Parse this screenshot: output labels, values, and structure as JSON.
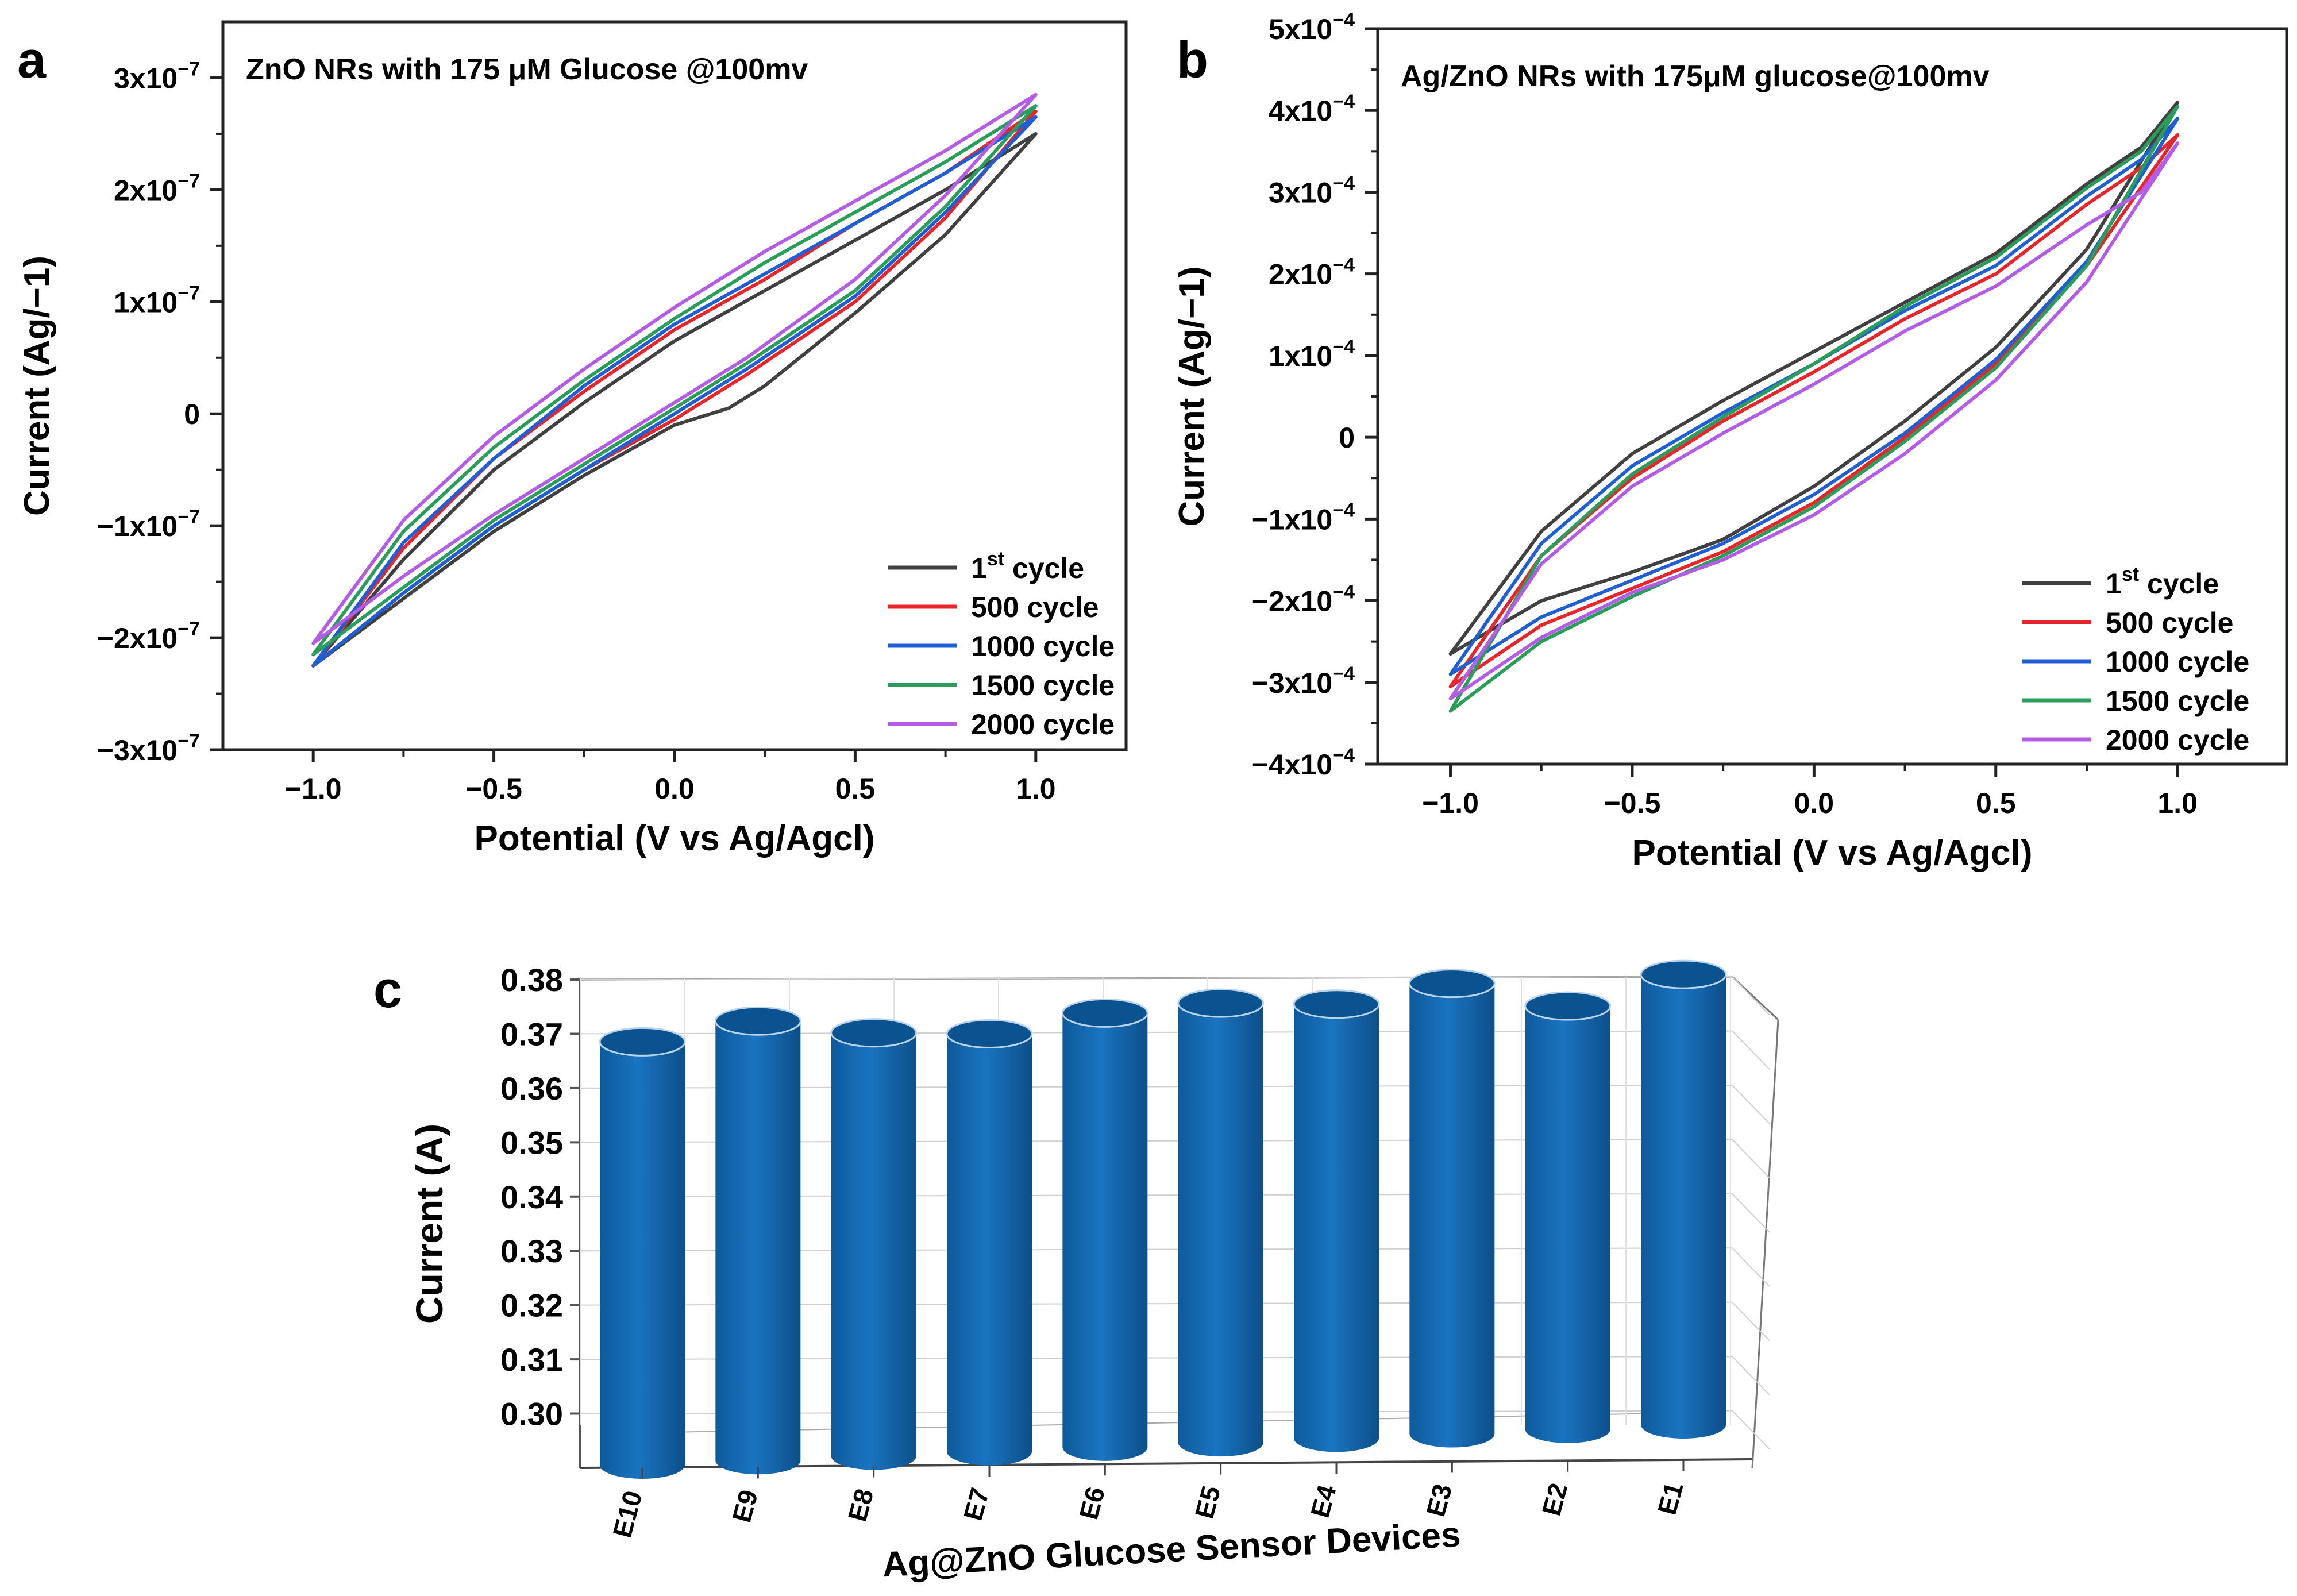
{
  "chart_data": [
    {
      "panel": "a",
      "type": "line",
      "title": "ZnO NRs with 175 μM Glucose @100mv",
      "xlabel": "Potential (V vs Ag/Agcl)",
      "ylabel": "Current (Ag/−1)",
      "xlim": [
        -1.25,
        1.25
      ],
      "ylim": [
        -3e-07,
        3.5e-07
      ],
      "xticks": [
        -1.0,
        -0.5,
        0.0,
        0.5,
        1.0
      ],
      "xtick_labels": [
        "−1.0",
        "−0.5",
        "0.0",
        "0.5",
        "1.0"
      ],
      "yticks": [
        3e-07,
        2e-07,
        1e-07,
        0,
        -1e-07,
        -2e-07,
        -3e-07
      ],
      "ytick_labels": [
        {
          "mant": "3x10",
          "exp": "−7"
        },
        {
          "mant": "2x10",
          "exp": "−7"
        },
        {
          "mant": "1x10",
          "exp": "−7"
        },
        {
          "mant": "0",
          "exp": ""
        },
        {
          "mant": "−1x10",
          "exp": "−7"
        },
        {
          "mant": "−2x10",
          "exp": "−7"
        },
        {
          "mant": "−3x10",
          "exp": "−7"
        }
      ],
      "legend_position": "bottom-right",
      "series": [
        {
          "name": "1st cycle",
          "label_main": "1",
          "label_sup": "st",
          "label_rest": " cycle",
          "color": "#404040",
          "lower": [
            [
              -1.0,
              -2.25e-07
            ],
            [
              -0.75,
              -1.65e-07
            ],
            [
              -0.5,
              -1.05e-07
            ],
            [
              -0.25,
              -5.5e-08
            ],
            [
              0.0,
              -1e-08
            ],
            [
              0.15,
              5e-09
            ],
            [
              0.25,
              2.5e-08
            ],
            [
              0.5,
              9e-08
            ],
            [
              0.75,
              1.6e-07
            ],
            [
              1.0,
              2.5e-07
            ]
          ],
          "upper": [
            [
              1.0,
              2.5e-07
            ],
            [
              0.75,
              2e-07
            ],
            [
              0.5,
              1.55e-07
            ],
            [
              0.25,
              1.1e-07
            ],
            [
              0.0,
              6.5e-08
            ],
            [
              -0.25,
              1e-08
            ],
            [
              -0.5,
              -5e-08
            ],
            [
              -0.75,
              -1.3e-07
            ],
            [
              -1.0,
              -2.25e-07
            ]
          ]
        },
        {
          "name": "500 cycle",
          "label_main": "500 cycle",
          "label_sup": "",
          "label_rest": "",
          "color": "#e8252b",
          "lower": [
            [
              -1.0,
              -2.25e-07
            ],
            [
              -0.75,
              -1.6e-07
            ],
            [
              -0.5,
              -1e-07
            ],
            [
              -0.25,
              -5e-08
            ],
            [
              0.0,
              -5e-09
            ],
            [
              0.2,
              3.5e-08
            ],
            [
              0.5,
              1e-07
            ],
            [
              0.75,
              1.75e-07
            ],
            [
              1.0,
              2.7e-07
            ]
          ],
          "upper": [
            [
              1.0,
              2.7e-07
            ],
            [
              0.75,
              2.15e-07
            ],
            [
              0.5,
              1.7e-07
            ],
            [
              0.25,
              1.2e-07
            ],
            [
              0.0,
              7.5e-08
            ],
            [
              -0.25,
              2e-08
            ],
            [
              -0.5,
              -4e-08
            ],
            [
              -0.75,
              -1.2e-07
            ],
            [
              -1.0,
              -2.25e-07
            ]
          ]
        },
        {
          "name": "1000 cycle",
          "label_main": "1000 cycle",
          "label_sup": "",
          "label_rest": "",
          "color": "#1f5fd6",
          "lower": [
            [
              -1.0,
              -2.25e-07
            ],
            [
              -0.75,
              -1.6e-07
            ],
            [
              -0.5,
              -1e-07
            ],
            [
              -0.25,
              -5e-08
            ],
            [
              0.0,
              0.0
            ],
            [
              0.2,
              4e-08
            ],
            [
              0.5,
              1.05e-07
            ],
            [
              0.75,
              1.8e-07
            ],
            [
              1.0,
              2.65e-07
            ]
          ],
          "upper": [
            [
              1.0,
              2.65e-07
            ],
            [
              0.75,
              2.15e-07
            ],
            [
              0.5,
              1.7e-07
            ],
            [
              0.25,
              1.25e-07
            ],
            [
              0.0,
              8e-08
            ],
            [
              -0.25,
              2.5e-08
            ],
            [
              -0.5,
              -4e-08
            ],
            [
              -0.75,
              -1.15e-07
            ],
            [
              -1.0,
              -2.25e-07
            ]
          ]
        },
        {
          "name": "1500 cycle",
          "label_main": "1500 cycle",
          "label_sup": "",
          "label_rest": "",
          "color": "#2a9d5a",
          "lower": [
            [
              -1.0,
              -2.15e-07
            ],
            [
              -0.75,
              -1.55e-07
            ],
            [
              -0.5,
              -9.5e-08
            ],
            [
              -0.25,
              -4.5e-08
            ],
            [
              0.0,
              5e-09
            ],
            [
              0.2,
              4.5e-08
            ],
            [
              0.5,
              1.1e-07
            ],
            [
              0.75,
              1.85e-07
            ],
            [
              1.0,
              2.75e-07
            ]
          ],
          "upper": [
            [
              1.0,
              2.75e-07
            ],
            [
              0.75,
              2.25e-07
            ],
            [
              0.5,
              1.8e-07
            ],
            [
              0.25,
              1.35e-07
            ],
            [
              0.0,
              8.5e-08
            ],
            [
              -0.25,
              3e-08
            ],
            [
              -0.5,
              -3e-08
            ],
            [
              -0.75,
              -1.05e-07
            ],
            [
              -1.0,
              -2.15e-07
            ]
          ]
        },
        {
          "name": "2000 cycle",
          "label_main": "2000 cycle",
          "label_sup": "",
          "label_rest": "",
          "color": "#b35ce6",
          "lower": [
            [
              -1.0,
              -2.05e-07
            ],
            [
              -0.75,
              -1.45e-07
            ],
            [
              -0.5,
              -9e-08
            ],
            [
              -0.25,
              -4e-08
            ],
            [
              0.0,
              1e-08
            ],
            [
              0.2,
              5e-08
            ],
            [
              0.5,
              1.2e-07
            ],
            [
              0.75,
              1.95e-07
            ],
            [
              1.0,
              2.85e-07
            ]
          ],
          "upper": [
            [
              1.0,
              2.85e-07
            ],
            [
              0.75,
              2.35e-07
            ],
            [
              0.5,
              1.9e-07
            ],
            [
              0.25,
              1.45e-07
            ],
            [
              0.0,
              9.5e-08
            ],
            [
              -0.25,
              4e-08
            ],
            [
              -0.5,
              -2e-08
            ],
            [
              -0.75,
              -9.5e-08
            ],
            [
              -1.0,
              -2.05e-07
            ]
          ]
        }
      ]
    },
    {
      "panel": "b",
      "type": "line",
      "title": "Ag/ZnO NRs with 175μM glucose@100mv",
      "xlabel": "Potential (V vs Ag/Agcl)",
      "ylabel": "Current (Ag/−1)",
      "xlim": [
        -1.2,
        1.3
      ],
      "ylim": [
        -0.0004,
        0.0005
      ],
      "xticks": [
        -1.0,
        -0.5,
        0.0,
        0.5,
        1.0
      ],
      "xtick_labels": [
        "−1.0",
        "−0.5",
        "0.0",
        "0.5",
        "1.0"
      ],
      "yticks": [
        0.0005,
        0.0004,
        0.0003,
        0.0002,
        0.0001,
        0,
        -0.0001,
        -0.0002,
        -0.0003,
        -0.0004
      ],
      "ytick_labels": [
        {
          "mant": "5x10",
          "exp": "−4"
        },
        {
          "mant": "4x10",
          "exp": "−4"
        },
        {
          "mant": "3x10",
          "exp": "−4"
        },
        {
          "mant": "2x10",
          "exp": "−4"
        },
        {
          "mant": "1x10",
          "exp": "−4"
        },
        {
          "mant": "0",
          "exp": ""
        },
        {
          "mant": "−1x10",
          "exp": "−4"
        },
        {
          "mant": "−2x10",
          "exp": "−4"
        },
        {
          "mant": "−3x10",
          "exp": "−4"
        },
        {
          "mant": "−4x10",
          "exp": "−4"
        }
      ],
      "legend_position": "bottom-right",
      "series": [
        {
          "name": "1st cycle",
          "label_main": "1",
          "label_sup": "st",
          "label_rest": " cycle",
          "color": "#404040",
          "lower": [
            [
              -1.0,
              -0.000265
            ],
            [
              -0.75,
              -0.0002
            ],
            [
              -0.5,
              -0.000165
            ],
            [
              -0.25,
              -0.000125
            ],
            [
              0.0,
              -6e-05
            ],
            [
              0.25,
              2e-05
            ],
            [
              0.5,
              0.00011
            ],
            [
              0.75,
              0.00023
            ],
            [
              1.0,
              0.00041
            ]
          ],
          "upper": [
            [
              1.0,
              0.00041
            ],
            [
              0.9,
              0.000355
            ],
            [
              0.75,
              0.00031
            ],
            [
              0.5,
              0.000225
            ],
            [
              0.25,
              0.000165
            ],
            [
              0.0,
              0.000105
            ],
            [
              -0.25,
              4.5e-05
            ],
            [
              -0.5,
              -2e-05
            ],
            [
              -0.75,
              -0.000115
            ],
            [
              -1.0,
              -0.000265
            ]
          ]
        },
        {
          "name": "500 cycle",
          "label_main": "500 cycle",
          "label_sup": "",
          "label_rest": "",
          "color": "#e8252b",
          "lower": [
            [
              -1.0,
              -0.000305
            ],
            [
              -0.75,
              -0.00023
            ],
            [
              -0.5,
              -0.000185
            ],
            [
              -0.25,
              -0.00014
            ],
            [
              0.0,
              -8e-05
            ],
            [
              0.25,
              0.0
            ],
            [
              0.5,
              9e-05
            ],
            [
              0.75,
              0.00021
            ],
            [
              1.0,
              0.00037
            ]
          ],
          "upper": [
            [
              1.0,
              0.00037
            ],
            [
              0.9,
              0.00033
            ],
            [
              0.75,
              0.000285
            ],
            [
              0.5,
              0.0002
            ],
            [
              0.25,
              0.000145
            ],
            [
              0.0,
              8e-05
            ],
            [
              -0.25,
              2e-05
            ],
            [
              -0.5,
              -5e-05
            ],
            [
              -0.75,
              -0.000145
            ],
            [
              -1.0,
              -0.000305
            ]
          ]
        },
        {
          "name": "1000 cycle",
          "label_main": "1000 cycle",
          "label_sup": "",
          "label_rest": "",
          "color": "#1f5fd6",
          "lower": [
            [
              -1.0,
              -0.00029
            ],
            [
              -0.75,
              -0.00022
            ],
            [
              -0.5,
              -0.000175
            ],
            [
              -0.25,
              -0.00013
            ],
            [
              0.0,
              -7e-05
            ],
            [
              0.25,
              5e-06
            ],
            [
              0.5,
              9.5e-05
            ],
            [
              0.75,
              0.000215
            ],
            [
              1.0,
              0.00039
            ]
          ],
          "upper": [
            [
              1.0,
              0.00039
            ],
            [
              0.9,
              0.00034
            ],
            [
              0.75,
              0.000295
            ],
            [
              0.5,
              0.00021
            ],
            [
              0.25,
              0.000155
            ],
            [
              0.0,
              9e-05
            ],
            [
              -0.25,
              3e-05
            ],
            [
              -0.5,
              -3.5e-05
            ],
            [
              -0.75,
              -0.00013
            ],
            [
              -1.0,
              -0.00029
            ]
          ]
        },
        {
          "name": "1500 cycle",
          "label_main": "1500 cycle",
          "label_sup": "",
          "label_rest": "",
          "color": "#2a9d5a",
          "lower": [
            [
              -1.0,
              -0.000335
            ],
            [
              -0.75,
              -0.00025
            ],
            [
              -0.5,
              -0.000195
            ],
            [
              -0.25,
              -0.000145
            ],
            [
              0.0,
              -8.5e-05
            ],
            [
              0.25,
              -5e-06
            ],
            [
              0.5,
              8.5e-05
            ],
            [
              0.75,
              0.00021
            ],
            [
              1.0,
              0.000405
            ]
          ],
          "upper": [
            [
              1.0,
              0.000405
            ],
            [
              0.9,
              0.00035
            ],
            [
              0.75,
              0.000305
            ],
            [
              0.5,
              0.00022
            ],
            [
              0.25,
              0.00016
            ],
            [
              0.0,
              9e-05
            ],
            [
              -0.25,
              2.5e-05
            ],
            [
              -0.5,
              -4.5e-05
            ],
            [
              -0.75,
              -0.000145
            ],
            [
              -1.0,
              -0.000335
            ]
          ]
        },
        {
          "name": "2000 cycle",
          "label_main": "2000 cycle",
          "label_sup": "",
          "label_rest": "",
          "color": "#b35ce6",
          "lower": [
            [
              -1.0,
              -0.00032
            ],
            [
              -0.75,
              -0.000245
            ],
            [
              -0.5,
              -0.00019
            ],
            [
              -0.25,
              -0.00015
            ],
            [
              0.0,
              -9.5e-05
            ],
            [
              0.25,
              -2e-05
            ],
            [
              0.5,
              7e-05
            ],
            [
              0.75,
              0.00019
            ],
            [
              1.0,
              0.00036
            ]
          ],
          "upper": [
            [
              1.0,
              0.00036
            ],
            [
              0.9,
              0.0003
            ],
            [
              0.75,
              0.00026
            ],
            [
              0.5,
              0.000185
            ],
            [
              0.25,
              0.00013
            ],
            [
              0.0,
              6.5e-05
            ],
            [
              -0.25,
              5e-06
            ],
            [
              -0.5,
              -6e-05
            ],
            [
              -0.75,
              -0.000155
            ],
            [
              -1.0,
              -0.00032
            ]
          ]
        }
      ]
    },
    {
      "panel": "c",
      "type": "bar",
      "style": "3d-cylinder",
      "xlabel": "Ag@ZnO Glucose Sensor Devices",
      "ylabel": "Current (A)",
      "ylim": [
        0.29,
        0.38
      ],
      "yticks": [
        0.3,
        0.31,
        0.32,
        0.33,
        0.34,
        0.35,
        0.36,
        0.37,
        0.38
      ],
      "ytick_labels": [
        "0.30",
        "0.31",
        "0.32",
        "0.33",
        "0.34",
        "0.35",
        "0.36",
        "0.37",
        "0.38"
      ],
      "categories": [
        "E10",
        "E9",
        "E8",
        "E7",
        "E6",
        "E5",
        "E4",
        "E3",
        "E2",
        "E1"
      ],
      "values": [
        0.368,
        0.371,
        0.368,
        0.367,
        0.37,
        0.371,
        0.37,
        0.373,
        0.368,
        0.373
      ],
      "color": "#1466b0"
    }
  ],
  "panels": {
    "a": "a",
    "b": "b",
    "c": "c"
  }
}
